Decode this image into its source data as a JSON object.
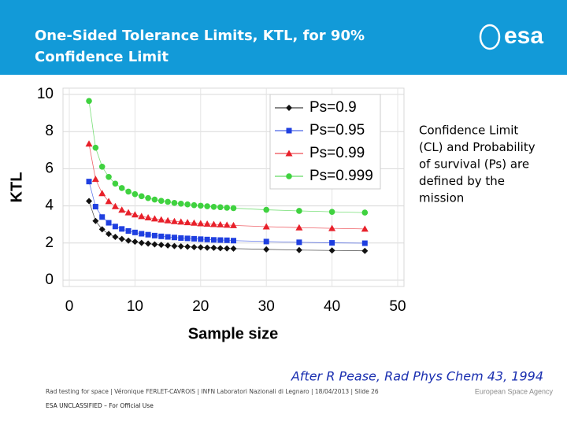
{
  "header": {
    "title": [
      "One-Sided Tolerance Limits, KTL, for 90%",
      "Confidence Limit"
    ],
    "logo": "esa"
  },
  "note": [
    "Confidence Limit",
    "(CL) and Probability",
    "of survival (Ps) are",
    "defined by the",
    "mission"
  ],
  "citation": "After R Pease, Rad Phys Chem 43, 1994",
  "footer": {
    "credit": "Rad testing for space | Véronique FERLET-CAVROIS | INFN Laboratori Nazionali di Legnaro | 18/04/2013 | Slide  26",
    "classification": "ESA UNCLASSIFIED – For Official Use",
    "agency": "European Space Agency"
  },
  "chart_data": {
    "type": "line",
    "x_label": "Sample size",
    "y_label": "KTL",
    "x": [
      3,
      4,
      5,
      6,
      7,
      8,
      9,
      10,
      11,
      12,
      13,
      14,
      15,
      16,
      17,
      18,
      19,
      20,
      21,
      22,
      23,
      24,
      25,
      30,
      35,
      40,
      45
    ],
    "series": [
      {
        "name": "Ps=0.9",
        "color": "#111111",
        "marker": "diamond",
        "values": [
          4.26,
          3.19,
          2.74,
          2.49,
          2.33,
          2.22,
          2.13,
          2.07,
          2.01,
          1.97,
          1.93,
          1.9,
          1.87,
          1.84,
          1.82,
          1.8,
          1.78,
          1.77,
          1.75,
          1.74,
          1.72,
          1.71,
          1.7,
          1.66,
          1.62,
          1.6,
          1.58
        ]
      },
      {
        "name": "Ps=0.95",
        "color": "#1f3fe0",
        "marker": "square",
        "values": [
          5.31,
          3.96,
          3.4,
          3.09,
          2.89,
          2.76,
          2.65,
          2.57,
          2.5,
          2.45,
          2.4,
          2.36,
          2.33,
          2.3,
          2.27,
          2.25,
          2.23,
          2.21,
          2.19,
          2.17,
          2.16,
          2.15,
          2.13,
          2.08,
          2.04,
          2.01,
          1.99
        ]
      },
      {
        "name": "Ps=0.99",
        "color": "#e8202a",
        "marker": "triangle",
        "values": [
          7.34,
          5.44,
          4.67,
          4.24,
          3.97,
          3.78,
          3.64,
          3.53,
          3.44,
          3.37,
          3.31,
          3.26,
          3.21,
          3.17,
          3.14,
          3.11,
          3.08,
          3.05,
          3.03,
          3.01,
          2.99,
          2.97,
          2.95,
          2.88,
          2.83,
          2.79,
          2.76
        ]
      },
      {
        "name": "Ps=0.999",
        "color": "#3fd23f",
        "marker": "circle",
        "values": [
          9.65,
          7.13,
          6.11,
          5.56,
          5.2,
          4.96,
          4.77,
          4.63,
          4.52,
          4.42,
          4.34,
          4.27,
          4.22,
          4.16,
          4.12,
          4.08,
          4.04,
          4.01,
          3.98,
          3.95,
          3.93,
          3.9,
          3.88,
          3.79,
          3.73,
          3.68,
          3.64
        ]
      }
    ],
    "xlim": [
      0,
      50
    ],
    "ylim": [
      0,
      10
    ],
    "xticks": [
      0,
      10,
      20,
      30,
      40,
      50
    ],
    "yticks": [
      0,
      2,
      4,
      6,
      8,
      10
    ],
    "grid": true,
    "legend": "upper right"
  }
}
